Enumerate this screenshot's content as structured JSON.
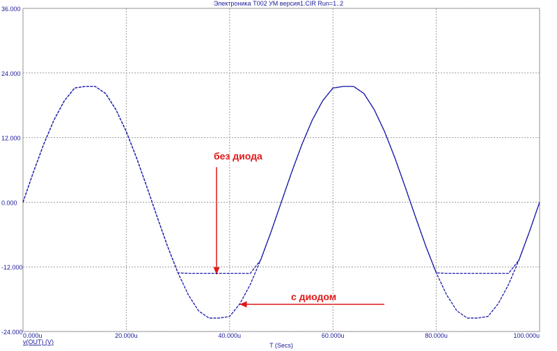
{
  "chart_data": {
    "type": "line",
    "title": "Электроника Т002 УМ версия1.CIR Run=1..2",
    "xlabel": "T (Secs)",
    "ylabel": "v(OUT) (V)",
    "annotations": [
      "без диода",
      "с диодом"
    ],
    "x": [
      0,
      2,
      4,
      6,
      8,
      10,
      12,
      14,
      16,
      18,
      20,
      22,
      24,
      26,
      28,
      30,
      32,
      34,
      36,
      38,
      40,
      42,
      44,
      46,
      48,
      50,
      52,
      54,
      56,
      58,
      60,
      62,
      64,
      66,
      68,
      70,
      72,
      74,
      76,
      78,
      80,
      82,
      84,
      86,
      88,
      90,
      92,
      94,
      96,
      98,
      100
    ],
    "series": [
      {
        "color": "#1a1aa8",
        "values": [
          0,
          5.55,
          10.74,
          15.26,
          18.83,
          21.21,
          21.5,
          21.5,
          20.18,
          17.18,
          13.11,
          8.21,
          2.79,
          -2.79,
          -8.21,
          -13.11,
          -13.2,
          -13.2,
          -13.2,
          -13.2,
          -13.2,
          -13.2,
          -13.2,
          -10.74,
          -5.55,
          0,
          5.55,
          10.74,
          15.26,
          18.83,
          21.21,
          21.5,
          21.5,
          20.18,
          17.18,
          13.11,
          8.21,
          2.79,
          -2.79,
          -8.21,
          -13.11,
          -13.2,
          -13.2,
          -13.2,
          -13.2,
          -13.2,
          -13.2,
          -13.2,
          -10.74,
          -5.55,
          0
        ]
      },
      {
        "color": "#1a1aa8",
        "values": [
          0,
          5.55,
          10.74,
          15.26,
          18.83,
          21.21,
          21.5,
          21.5,
          20.18,
          17.18,
          13.11,
          8.21,
          2.79,
          -2.79,
          -8.21,
          -13.11,
          -17.18,
          -20.18,
          -21.5,
          -21.5,
          -21.21,
          -18.83,
          -15.26,
          -10.74,
          -5.55,
          0,
          5.55,
          10.74,
          15.26,
          18.83,
          21.21,
          21.5,
          21.5,
          20.18,
          17.18,
          13.11,
          8.21,
          2.79,
          -2.79,
          -8.21,
          -13.11,
          -17.18,
          -20.18,
          -21.5,
          -21.5,
          -21.21,
          -18.83,
          -15.26,
          -10.74,
          -5.55,
          0
        ]
      }
    ],
    "xlim": [
      0,
      100
    ],
    "xticks": [
      {
        "value": 0,
        "label": "0.000u"
      },
      {
        "value": 20,
        "label": "20.000u"
      },
      {
        "value": 40,
        "label": "40.000u"
      },
      {
        "value": 60,
        "label": "60.000u"
      },
      {
        "value": 80,
        "label": "80.000u"
      },
      {
        "value": 100,
        "label": "100.000u"
      }
    ],
    "ylim": [
      -24,
      36
    ],
    "yticks": [
      {
        "value": -24,
        "label": "-24.000"
      },
      {
        "value": -12,
        "label": "-12.000"
      },
      {
        "value": 0,
        "label": "0.000"
      },
      {
        "value": 12,
        "label": "12.000"
      },
      {
        "value": 24,
        "label": "24.000"
      },
      {
        "value": 36,
        "label": "36.000"
      }
    ],
    "grid": true
  }
}
